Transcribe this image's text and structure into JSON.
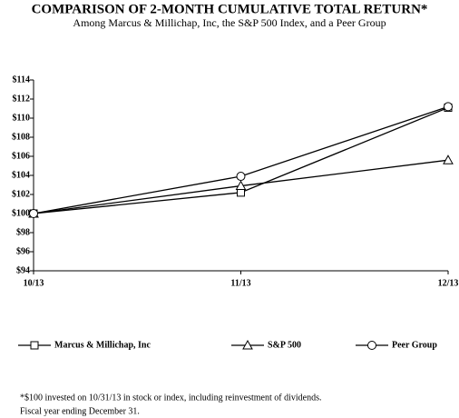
{
  "chart_data": {
    "type": "line",
    "title": "COMPARISON OF 2-MONTH CUMULATIVE TOTAL RETURN*",
    "subtitle": "Among Marcus & Millichap, Inc, the S&P 500 Index, and a Peer Group",
    "categories": [
      "10/13",
      "11/13",
      "12/13"
    ],
    "series": [
      {
        "name": "Marcus & Millichap, Inc",
        "color": "#000000",
        "marker": "square",
        "values": [
          100,
          102.2,
          111.1
        ]
      },
      {
        "name": "S&P 500",
        "color": "#000000",
        "marker": "triangle",
        "values": [
          100,
          102.9,
          105.6
        ]
      },
      {
        "name": "Peer Group",
        "color": "#000000",
        "marker": "circle",
        "values": [
          100,
          103.9,
          111.2
        ]
      }
    ],
    "ylim": [
      94,
      114
    ],
    "yticks": [
      {
        "value": 94,
        "label": "$94"
      },
      {
        "value": 96,
        "label": "$96"
      },
      {
        "value": 98,
        "label": "$98"
      },
      {
        "value": 100,
        "label": "$100"
      },
      {
        "value": 102,
        "label": "$102"
      },
      {
        "value": 104,
        "label": "$104"
      },
      {
        "value": 106,
        "label": "$106"
      },
      {
        "value": 108,
        "label": "$108"
      },
      {
        "value": 110,
        "label": "$110"
      },
      {
        "value": 112,
        "label": "$112"
      },
      {
        "value": 114,
        "label": "$114"
      }
    ],
    "grid": false,
    "legend": "bottom",
    "footnotes": [
      "*$100 invested on 10/31/13 in stock or index, including reinvestment of dividends.",
      "Fiscal year ending December 31."
    ]
  }
}
